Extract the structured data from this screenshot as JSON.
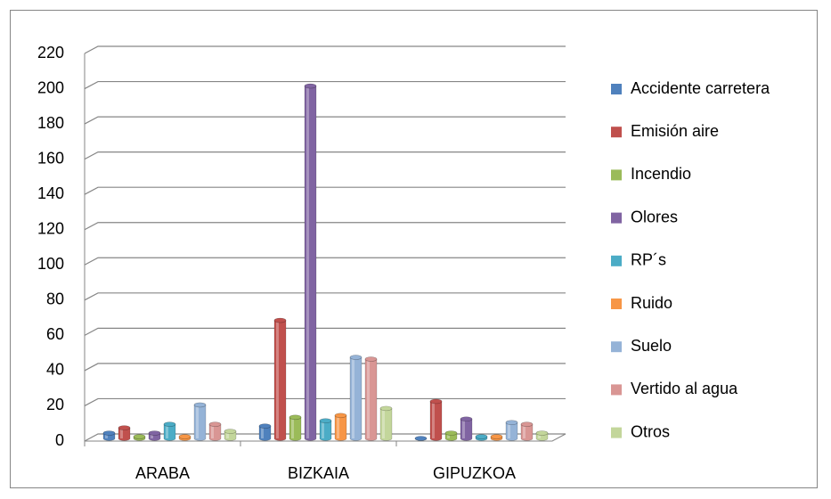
{
  "chart_data": {
    "type": "bar",
    "categories": [
      "ARABA",
      "BIZKAIA",
      "GIPUZKOA"
    ],
    "series": [
      {
        "name": "Accidente carretera",
        "color": "#4f81bd",
        "values": [
          3,
          7,
          0
        ]
      },
      {
        "name": "Emisión aire",
        "color": "#c0504d",
        "values": [
          6,
          67,
          21
        ]
      },
      {
        "name": "Incendio",
        "color": "#9bbb59",
        "values": [
          1,
          12,
          3
        ]
      },
      {
        "name": "Olores",
        "color": "#8064a2",
        "values": [
          3,
          200,
          11
        ]
      },
      {
        "name": "RP´s",
        "color": "#4bacc6",
        "values": [
          8,
          10,
          1
        ]
      },
      {
        "name": "Ruido",
        "color": "#f79646",
        "values": [
          1,
          13,
          1
        ]
      },
      {
        "name": "Suelo",
        "color": "#95b3d7",
        "values": [
          19,
          46,
          9
        ]
      },
      {
        "name": "Vertido al agua",
        "color": "#d99694",
        "values": [
          8,
          45,
          8
        ]
      },
      {
        "name": "Otros",
        "color": "#c3d69b",
        "values": [
          4,
          17,
          3
        ]
      }
    ],
    "ylim": [
      0,
      220
    ],
    "yticks": [
      0,
      20,
      40,
      60,
      80,
      100,
      120,
      140,
      160,
      180,
      200,
      220
    ],
    "grid": true,
    "legend": "right"
  }
}
